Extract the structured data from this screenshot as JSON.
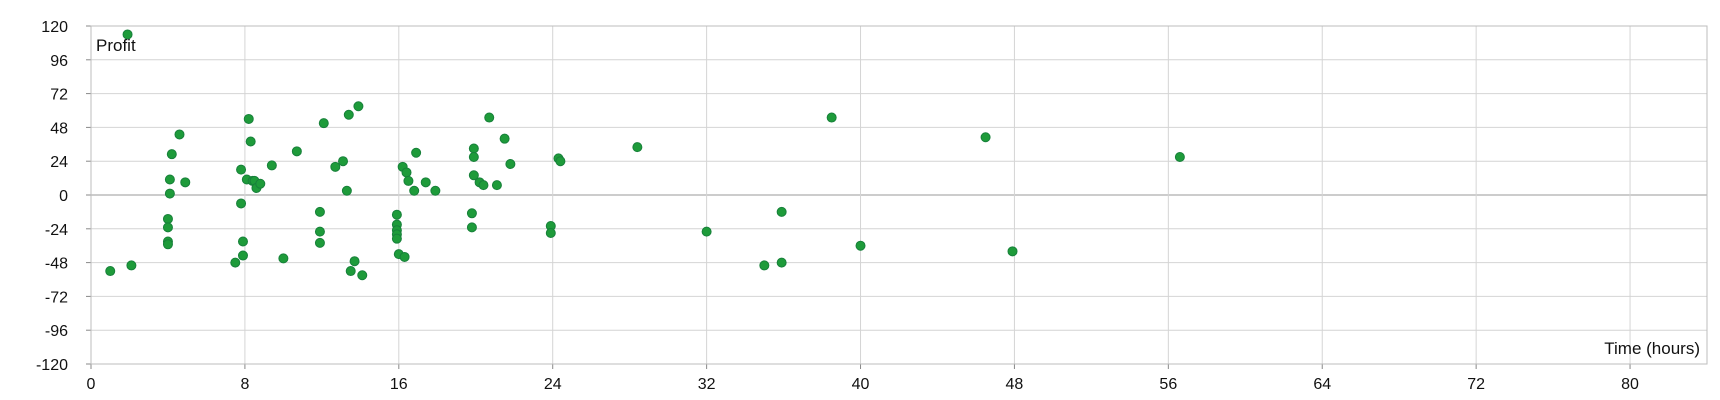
{
  "chart_data": {
    "type": "scatter",
    "xlabel": "Time (hours)",
    "ylabel": "Profit",
    "xlim": [
      0,
      84
    ],
    "ylim": [
      -120,
      120
    ],
    "x_ticks": [
      0,
      8,
      16,
      24,
      32,
      40,
      48,
      56,
      64,
      72,
      80
    ],
    "y_ticks": [
      120,
      96,
      72,
      48,
      24,
      0,
      -24,
      -48,
      -72,
      -96,
      -120
    ],
    "grid": true,
    "colors": {
      "point": "#1e9b3a",
      "grid": "#d4d4d4",
      "zero_line": "#9a9a9a"
    },
    "x": [
      1,
      1.9,
      2.1,
      4,
      4,
      4,
      4,
      4.1,
      4.1,
      4.2,
      4.6,
      4.9,
      7.5,
      7.8,
      7.8,
      7.9,
      7.9,
      8.1,
      8.2,
      8.3,
      8.4,
      8.5,
      8.6,
      8.8,
      9.4,
      10,
      10.7,
      11.9,
      11.9,
      11.9,
      12.1,
      12.7,
      13.1,
      13.3,
      13.4,
      13.5,
      13.7,
      13.9,
      14.1,
      15.9,
      15.9,
      15.9,
      15.9,
      15.9,
      16,
      16.2,
      16.3,
      16.4,
      16.5,
      16.8,
      16.9,
      17.4,
      17.9,
      19.8,
      19.8,
      19.9,
      19.9,
      19.9,
      20.2,
      20.4,
      20.7,
      21.1,
      21.5,
      21.8,
      23.9,
      23.9,
      24.3,
      24.4,
      28.4,
      32,
      35,
      35.9,
      35.9,
      38.5,
      40,
      46.5,
      47.9,
      56.6
    ],
    "y": [
      -54,
      114,
      -50,
      -17,
      -23,
      -33,
      -35,
      11,
      1,
      29,
      43,
      9,
      -48,
      18,
      -6,
      -33,
      -43,
      11,
      54,
      38,
      10,
      10,
      5,
      8,
      21,
      -45,
      31,
      -12,
      -26,
      -34,
      51,
      20,
      24,
      3,
      57,
      -54,
      -47,
      63,
      -57,
      -14,
      -21,
      -25,
      -28,
      -31,
      -42,
      20,
      -44,
      16,
      10,
      3,
      30,
      9,
      3,
      -13,
      -23,
      33,
      27,
      14,
      9,
      7,
      55,
      7,
      40,
      22,
      -22,
      -27,
      26,
      24,
      34,
      -26,
      -50,
      -12,
      -48,
      55,
      -36,
      41,
      -40,
      27
    ]
  }
}
